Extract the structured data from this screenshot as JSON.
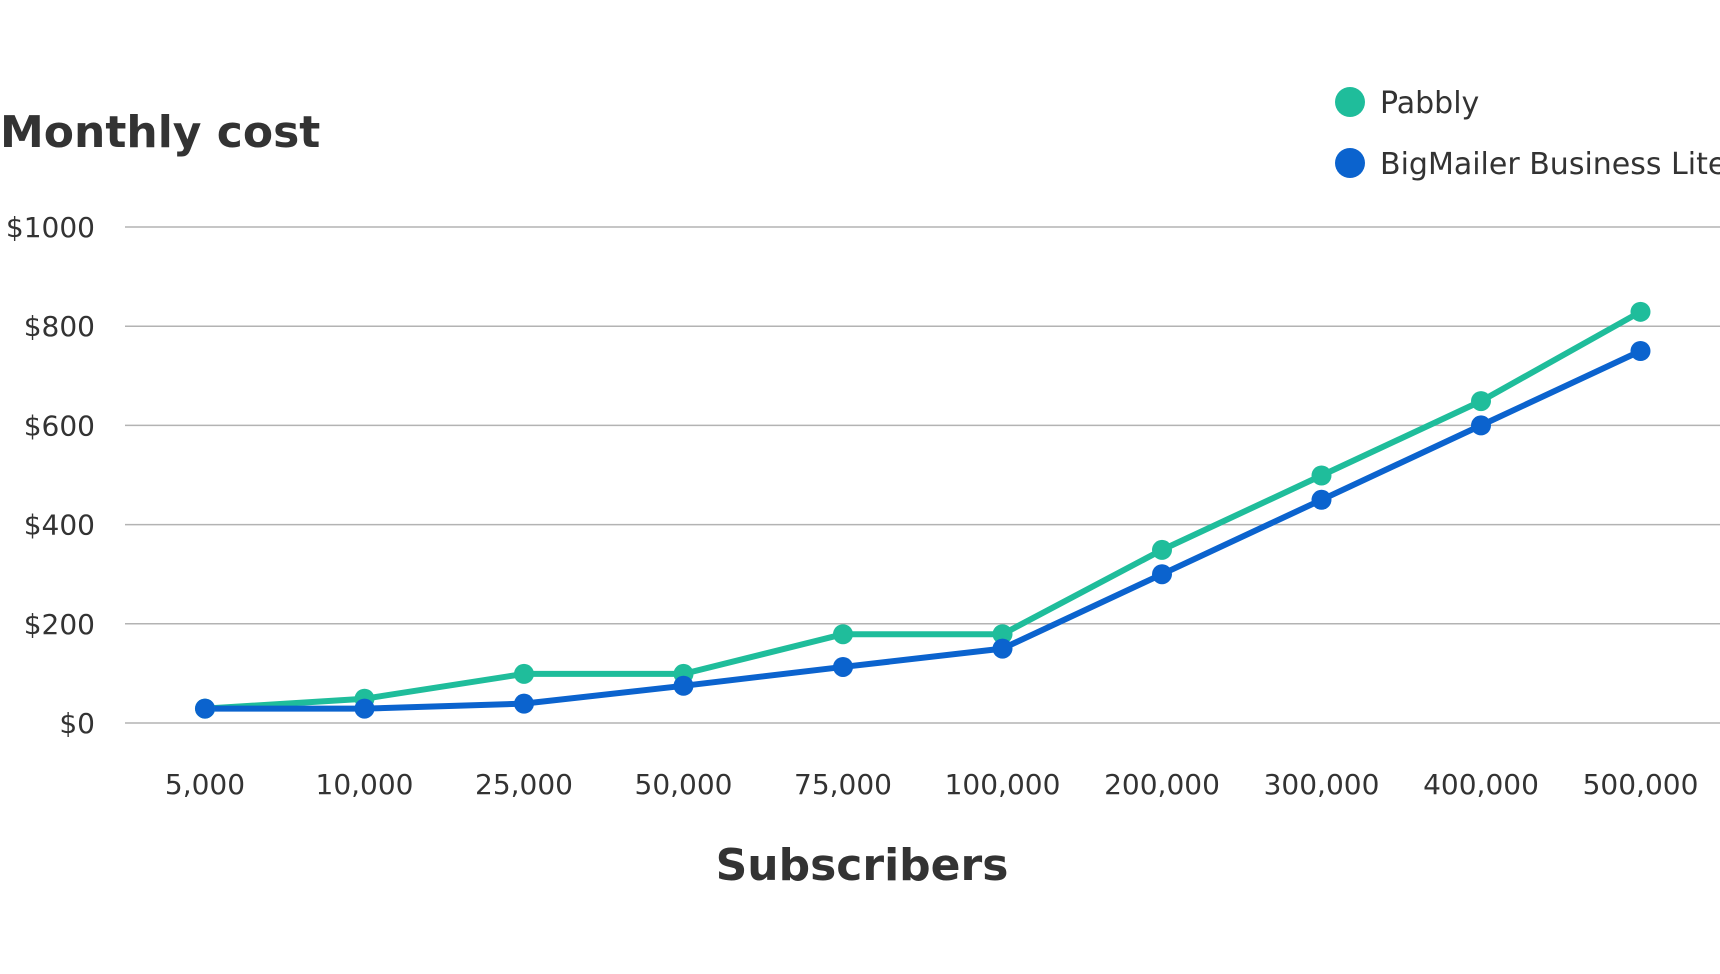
{
  "chart_data": {
    "type": "line",
    "ylabel": "Monthly cost",
    "xlabel": "Subscribers",
    "categories": [
      "5,000",
      "10,000",
      "25,000",
      "50,000",
      "75,000",
      "100,000",
      "200,000",
      "300,000",
      "400,000",
      "500,000"
    ],
    "y_ticks": [
      "$0",
      "$200",
      "$400",
      "$600",
      "$800",
      "$1000"
    ],
    "ylim": [
      0,
      1000
    ],
    "grid": true,
    "legend_position": "top-right",
    "series": [
      {
        "name": "Pabbly",
        "color": "#1fbd9b",
        "values": [
          29,
          49,
          99,
          99,
          179,
          179,
          349,
          499,
          649,
          829
        ]
      },
      {
        "name": "BigMailer Business Lite",
        "color": "#0b63ce",
        "values": [
          29,
          29,
          39,
          75,
          113,
          150,
          300,
          450,
          600,
          750
        ]
      }
    ]
  }
}
